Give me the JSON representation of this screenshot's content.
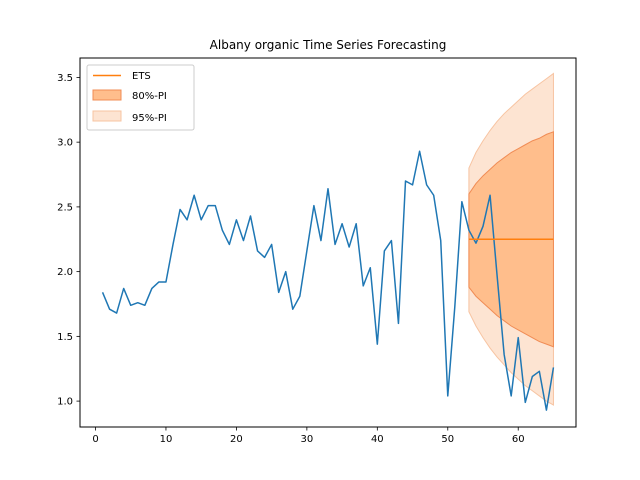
{
  "chart_data": {
    "type": "line",
    "title": "Albany organic Time Series Forecasting",
    "xlabel": "",
    "ylabel": "",
    "xlim": [
      -2.2,
      68.2
    ],
    "ylim": [
      0.8,
      3.65
    ],
    "x_ticks": [
      0,
      10,
      20,
      30,
      40,
      50,
      60
    ],
    "y_ticks": [
      1.0,
      1.5,
      2.0,
      2.5,
      3.0,
      3.5
    ],
    "x_tick_labels": [
      "0",
      "10",
      "20",
      "30",
      "40",
      "50",
      "60"
    ],
    "y_tick_labels": [
      "1.0",
      "1.5",
      "2.0",
      "2.5",
      "3.0",
      "3.5"
    ],
    "grid": false,
    "legend_position": "top-left",
    "colors": {
      "observed": "#1f77b4",
      "ets": "#ff7f0e",
      "pi80_fill": "#ffbe8c",
      "pi80_edge": "#f08c55",
      "pi95_fill": "#fde4d2",
      "pi95_edge": "#f7c4a2"
    },
    "observed": {
      "x": [
        1,
        2,
        3,
        4,
        5,
        6,
        7,
        8,
        9,
        10,
        11,
        12,
        13,
        14,
        15,
        16,
        17,
        18,
        19,
        20,
        21,
        22,
        23,
        24,
        25,
        26,
        27,
        28,
        29,
        30,
        31,
        32,
        33,
        34,
        35,
        36,
        37,
        38,
        39,
        40,
        41,
        42,
        43,
        44,
        45,
        46,
        47,
        48,
        49,
        50,
        51,
        52,
        53,
        54,
        55,
        56,
        57,
        58,
        59,
        60,
        61,
        62,
        63,
        64,
        65
      ],
      "y": [
        1.84,
        1.71,
        1.68,
        1.87,
        1.74,
        1.76,
        1.74,
        1.87,
        1.92,
        1.92,
        2.21,
        2.48,
        2.4,
        2.59,
        2.4,
        2.51,
        2.51,
        2.32,
        2.21,
        2.4,
        2.24,
        2.43,
        2.16,
        2.11,
        2.21,
        1.84,
        2.0,
        1.71,
        1.81,
        2.16,
        2.51,
        2.24,
        2.64,
        2.21,
        2.37,
        2.19,
        2.37,
        1.89,
        2.03,
        1.44,
        2.16,
        2.24,
        1.6,
        2.7,
        2.67,
        2.93,
        2.67,
        2.59,
        2.24,
        1.04,
        1.73,
        2.54,
        2.32,
        2.22,
        2.35,
        2.59,
        1.97,
        1.36,
        1.04,
        1.49,
        0.99,
        1.19,
        1.23,
        0.93,
        1.26
      ]
    },
    "forecast": {
      "x": [
        53,
        54,
        55,
        56,
        57,
        58,
        59,
        60,
        61,
        62,
        63,
        64,
        65
      ],
      "ets": [
        2.25,
        2.25,
        2.25,
        2.25,
        2.25,
        2.25,
        2.25,
        2.25,
        2.25,
        2.25,
        2.25,
        2.25,
        2.25
      ],
      "pi80_upper": [
        2.6,
        2.68,
        2.74,
        2.79,
        2.84,
        2.88,
        2.92,
        2.95,
        2.98,
        3.01,
        3.03,
        3.06,
        3.08
      ],
      "pi80_lower": [
        1.88,
        1.81,
        1.76,
        1.71,
        1.66,
        1.62,
        1.58,
        1.55,
        1.52,
        1.49,
        1.46,
        1.44,
        1.42
      ],
      "pi95_upper": [
        2.8,
        2.92,
        3.01,
        3.09,
        3.16,
        3.22,
        3.27,
        3.32,
        3.37,
        3.41,
        3.45,
        3.49,
        3.53
      ],
      "pi95_lower": [
        1.69,
        1.58,
        1.49,
        1.41,
        1.34,
        1.28,
        1.22,
        1.17,
        1.12,
        1.08,
        1.04,
        1.0,
        0.97
      ]
    },
    "legend": [
      "ETS",
      "80%-PI",
      "95%-PI"
    ]
  }
}
